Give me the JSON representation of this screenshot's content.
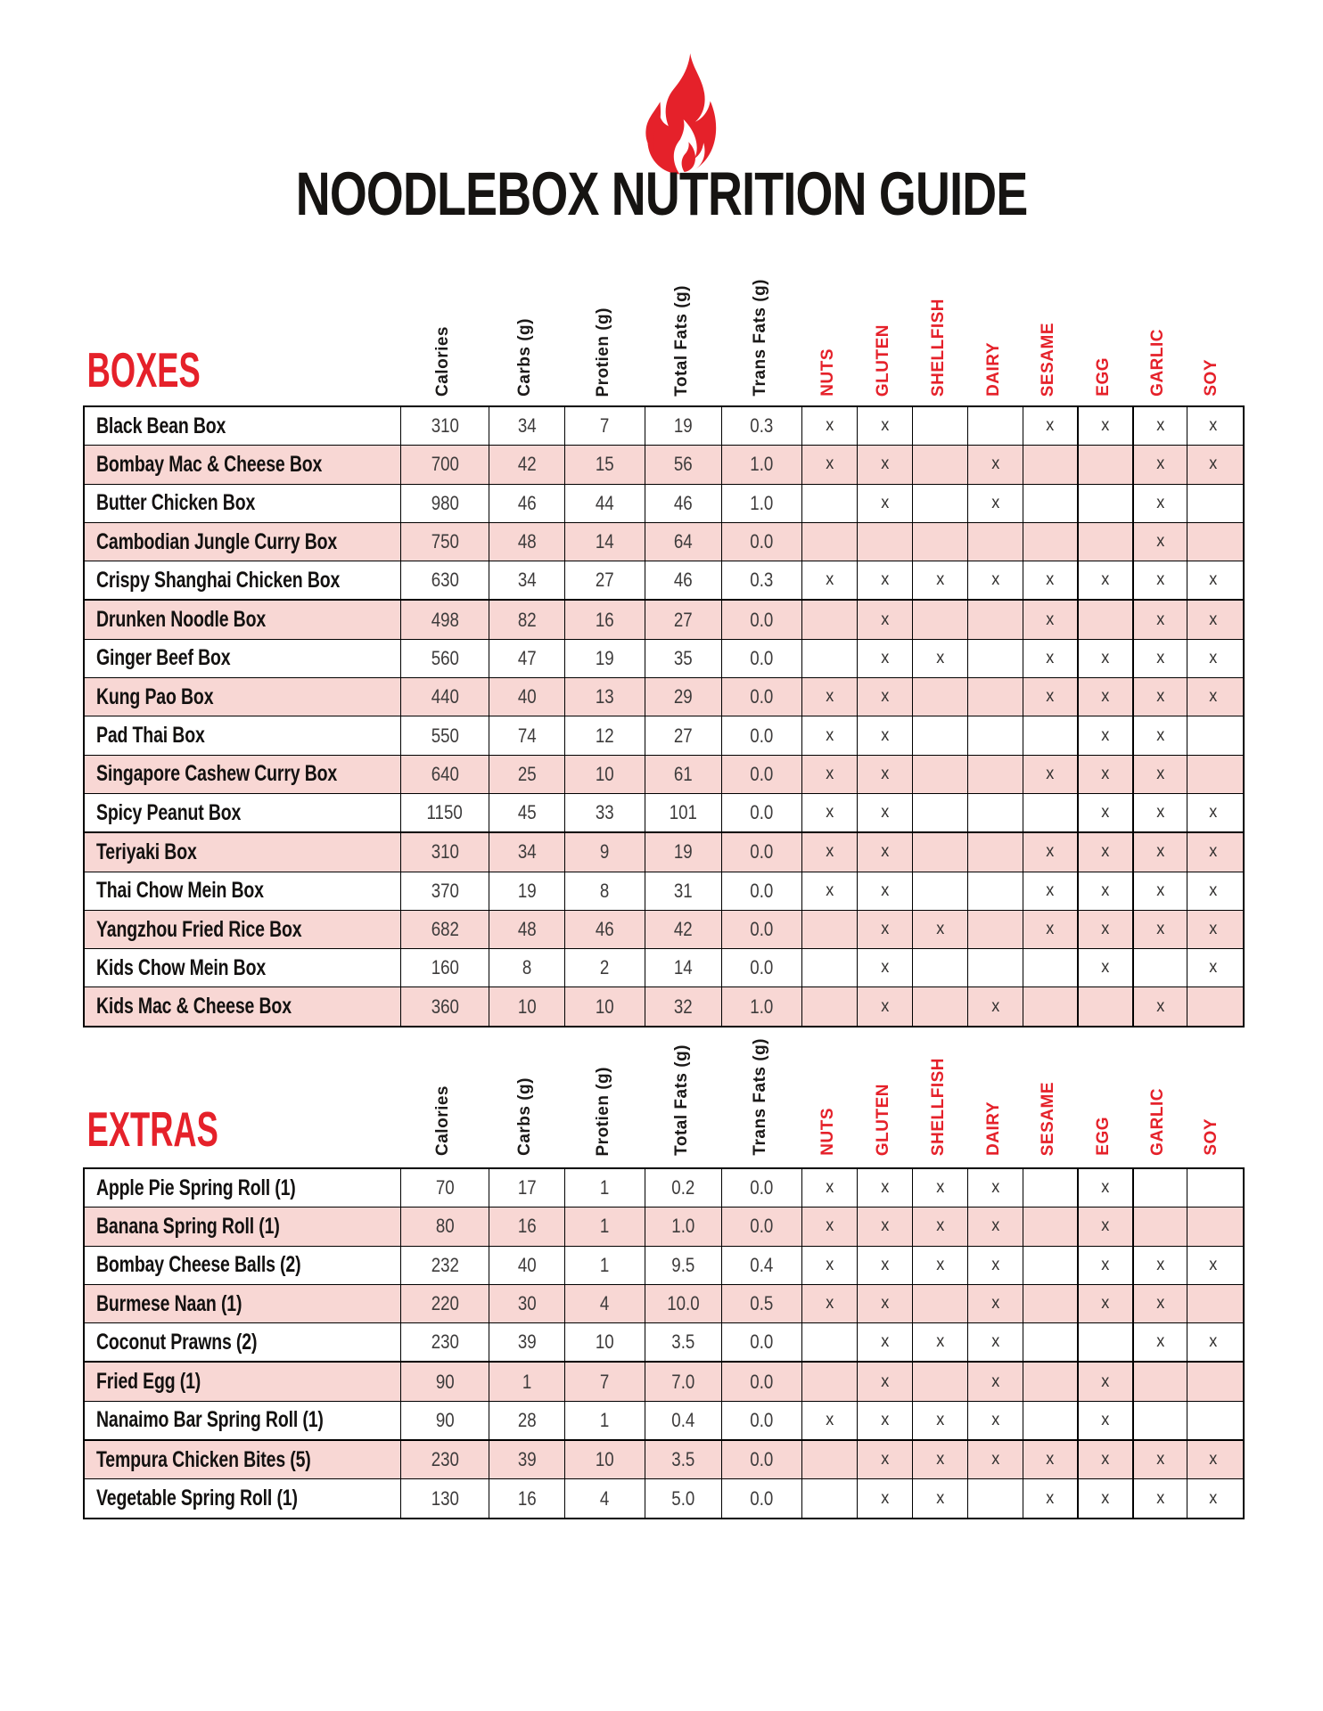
{
  "title": "NOODLEBOX NUTRITION GUIDE",
  "logo": {
    "icon": "flame-icon",
    "color": "#e5212a"
  },
  "colors": {
    "accent_red": "#e5212a",
    "row_pink": "#f8d7d4",
    "heading_black": "#161412",
    "value_gray": "#3d3b3b"
  },
  "allergen_mark": "x",
  "columns": {
    "nutrients": [
      "Calories",
      "Carbs (g)",
      "Protien (g)",
      "Total Fats (g)",
      "Trans Fats (g)"
    ],
    "allergens": [
      "NUTS",
      "GLUTEN",
      "SHELLFISH",
      "DAIRY",
      "SESAME",
      "EGG",
      "GARLIC",
      "SOY"
    ]
  },
  "sections": [
    {
      "title": "BOXES",
      "rows": [
        {
          "name": "Black Bean Box",
          "values": [
            "310",
            "34",
            "7",
            "19",
            "0.3"
          ],
          "allergens": [
            1,
            1,
            0,
            0,
            1,
            1,
            1,
            1
          ]
        },
        {
          "name": "Bombay Mac & Cheese Box",
          "values": [
            "700",
            "42",
            "15",
            "56",
            "1.0"
          ],
          "allergens": [
            1,
            1,
            0,
            1,
            0,
            0,
            1,
            1
          ]
        },
        {
          "name": "Butter Chicken Box",
          "values": [
            "980",
            "46",
            "44",
            "46",
            "1.0"
          ],
          "allergens": [
            0,
            1,
            0,
            1,
            0,
            0,
            1,
            0
          ]
        },
        {
          "name": "Cambodian Jungle Curry Box",
          "values": [
            "750",
            "48",
            "14",
            "64",
            "0.0"
          ],
          "allergens": [
            0,
            0,
            0,
            0,
            0,
            0,
            1,
            0
          ]
        },
        {
          "name": "Crispy Shanghai Chicken Box",
          "values": [
            "630",
            "34",
            "27",
            "46",
            "0.3"
          ],
          "allergens": [
            1,
            1,
            1,
            1,
            1,
            1,
            1,
            1
          ]
        },
        {
          "name": "Drunken Noodle Box",
          "values": [
            "498",
            "82",
            "16",
            "27",
            "0.0"
          ],
          "allergens": [
            0,
            1,
            0,
            0,
            1,
            0,
            1,
            1
          ]
        },
        {
          "name": "Ginger Beef Box",
          "values": [
            "560",
            "47",
            "19",
            "35",
            "0.0"
          ],
          "allergens": [
            0,
            1,
            1,
            0,
            1,
            1,
            1,
            1
          ]
        },
        {
          "name": "Kung Pao Box",
          "values": [
            "440",
            "40",
            "13",
            "29",
            "0.0"
          ],
          "allergens": [
            1,
            1,
            0,
            0,
            1,
            1,
            1,
            1
          ]
        },
        {
          "name": "Pad Thai Box",
          "values": [
            "550",
            "74",
            "12",
            "27",
            "0.0"
          ],
          "allergens": [
            1,
            1,
            0,
            0,
            0,
            1,
            1,
            0
          ]
        },
        {
          "name": "Singapore Cashew Curry Box",
          "values": [
            "640",
            "25",
            "10",
            "61",
            "0.0"
          ],
          "allergens": [
            1,
            1,
            0,
            0,
            1,
            1,
            1,
            0
          ]
        },
        {
          "name": "Spicy Peanut Box",
          "values": [
            "1150",
            "45",
            "33",
            "101",
            "0.0"
          ],
          "allergens": [
            1,
            1,
            0,
            0,
            0,
            1,
            1,
            1
          ]
        },
        {
          "name": "Teriyaki Box",
          "values": [
            "310",
            "34",
            "9",
            "19",
            "0.0"
          ],
          "allergens": [
            1,
            1,
            0,
            0,
            1,
            1,
            1,
            1
          ]
        },
        {
          "name": "Thai Chow Mein Box",
          "values": [
            "370",
            "19",
            "8",
            "31",
            "0.0"
          ],
          "allergens": [
            1,
            1,
            0,
            0,
            1,
            1,
            1,
            1
          ]
        },
        {
          "name": "Yangzhou Fried Rice Box",
          "values": [
            "682",
            "48",
            "46",
            "42",
            "0.0"
          ],
          "allergens": [
            0,
            1,
            1,
            0,
            1,
            1,
            1,
            1
          ]
        },
        {
          "name": "Kids Chow Mein Box",
          "values": [
            "160",
            "8",
            "2",
            "14",
            "0.0"
          ],
          "allergens": [
            0,
            1,
            0,
            0,
            0,
            1,
            0,
            1
          ]
        },
        {
          "name": "Kids Mac & Cheese Box",
          "values": [
            "360",
            "10",
            "10",
            "32",
            "1.0"
          ],
          "allergens": [
            0,
            1,
            0,
            1,
            0,
            0,
            1,
            0
          ]
        }
      ]
    },
    {
      "title": "EXTRAS",
      "rows": [
        {
          "name": "Apple Pie Spring Roll (1)",
          "values": [
            "70",
            "17",
            "1",
            "0.2",
            "0.0"
          ],
          "allergens": [
            1,
            1,
            1,
            1,
            0,
            1,
            0,
            0
          ]
        },
        {
          "name": "Banana Spring Roll (1)",
          "values": [
            "80",
            "16",
            "1",
            "1.0",
            "0.0"
          ],
          "allergens": [
            1,
            1,
            1,
            1,
            0,
            1,
            0,
            0
          ]
        },
        {
          "name": "Bombay Cheese Balls (2)",
          "values": [
            "232",
            "40",
            "1",
            "9.5",
            "0.4"
          ],
          "allergens": [
            1,
            1,
            1,
            1,
            0,
            1,
            1,
            1
          ]
        },
        {
          "name": "Burmese Naan (1)",
          "values": [
            "220",
            "30",
            "4",
            "10.0",
            "0.5"
          ],
          "allergens": [
            1,
            1,
            0,
            1,
            0,
            1,
            1,
            0
          ]
        },
        {
          "name": "Coconut Prawns (2)",
          "values": [
            "230",
            "39",
            "10",
            "3.5",
            "0.0"
          ],
          "allergens": [
            0,
            1,
            1,
            1,
            0,
            0,
            1,
            1
          ]
        },
        {
          "name": "Fried Egg (1)",
          "values": [
            "90",
            "1",
            "7",
            "7.0",
            "0.0"
          ],
          "allergens": [
            0,
            1,
            0,
            1,
            0,
            1,
            0,
            0
          ]
        },
        {
          "name": "Nanaimo Bar Spring Roll (1)",
          "values": [
            "90",
            "28",
            "1",
            "0.4",
            "0.0"
          ],
          "allergens": [
            1,
            1,
            1,
            1,
            0,
            1,
            0,
            0
          ]
        },
        {
          "name": "Tempura Chicken Bites (5)",
          "values": [
            "230",
            "39",
            "10",
            "3.5",
            "0.0"
          ],
          "allergens": [
            0,
            1,
            1,
            1,
            1,
            1,
            1,
            1
          ]
        },
        {
          "name": "Vegetable Spring Roll (1)",
          "values": [
            "130",
            "16",
            "4",
            "5.0",
            "0.0"
          ],
          "allergens": [
            0,
            1,
            1,
            0,
            1,
            1,
            1,
            1
          ]
        }
      ]
    }
  ]
}
